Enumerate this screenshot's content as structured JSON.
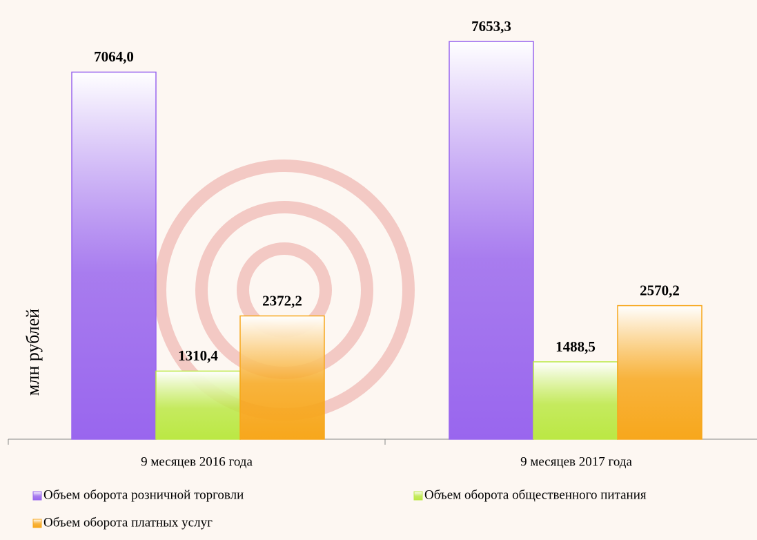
{
  "chart_data": {
    "type": "bar",
    "y_label": "млн рублей",
    "categories": [
      "9 месяцев 2016 года",
      "9 месяцев  2017 года"
    ],
    "series": [
      {
        "name": "Объем оборота розничной торговли",
        "color": "#9966ee",
        "values": [
          7064.0,
          7653.3
        ],
        "value_labels": [
          "7064,0",
          "7653,3"
        ]
      },
      {
        "name": "Объем оборота общественного питания",
        "color": "#bbe844",
        "values": [
          1310.4,
          1488.5
        ],
        "value_labels": [
          "1310,4",
          "1488,5"
        ]
      },
      {
        "name": "Объем оборота платных услуг",
        "color": "#f7a71c",
        "values": [
          2372.2,
          2570.2
        ],
        "value_labels": [
          "2372,2",
          "2570,2"
        ]
      }
    ],
    "ylim": [
      0,
      8000
    ]
  }
}
